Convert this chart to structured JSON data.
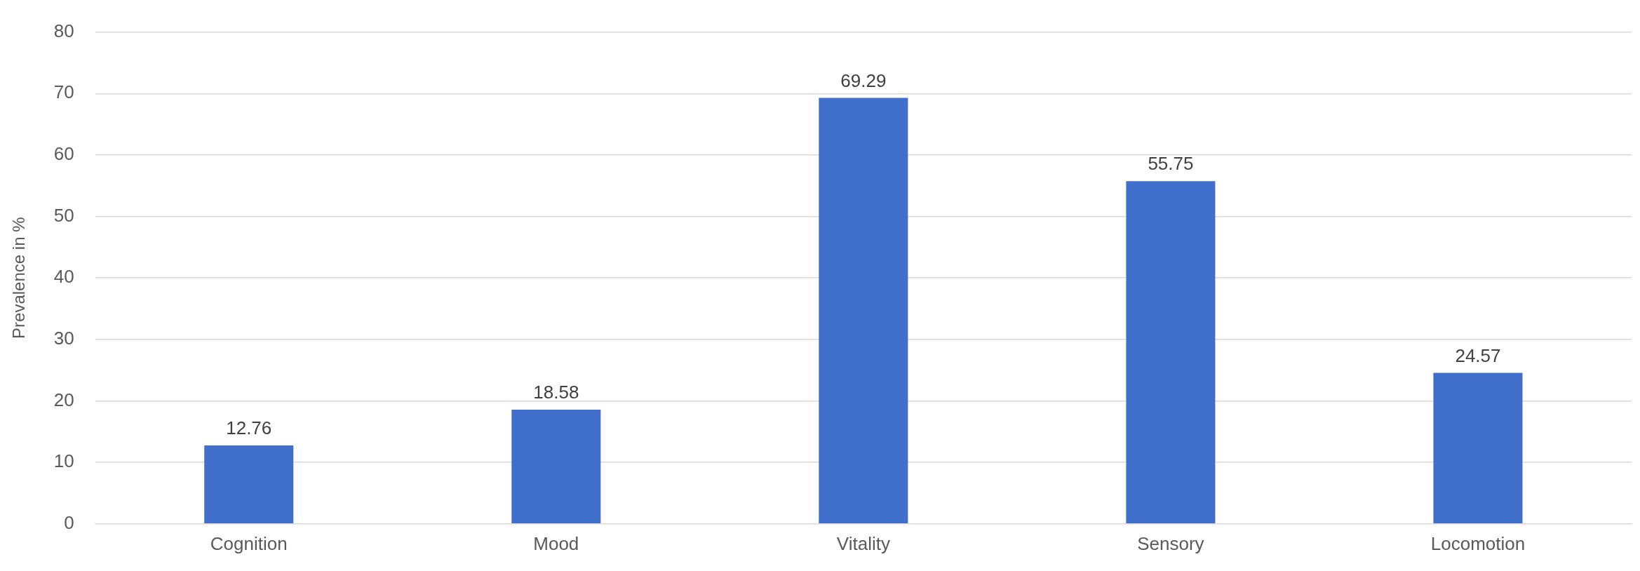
{
  "chart_data": {
    "type": "bar",
    "ylabel": "Prevalence in %",
    "categories": [
      "Cognition",
      "Mood",
      "Vitality",
      "Sensory",
      "Locomotion"
    ],
    "values": [
      12.76,
      18.58,
      69.29,
      55.75,
      24.57
    ],
    "color": "#3f6fca",
    "ylim": [
      0,
      80
    ],
    "yticks": [
      0,
      10,
      20,
      30,
      40,
      50,
      60,
      70,
      80
    ],
    "grid": "y",
    "data_labels": true
  }
}
